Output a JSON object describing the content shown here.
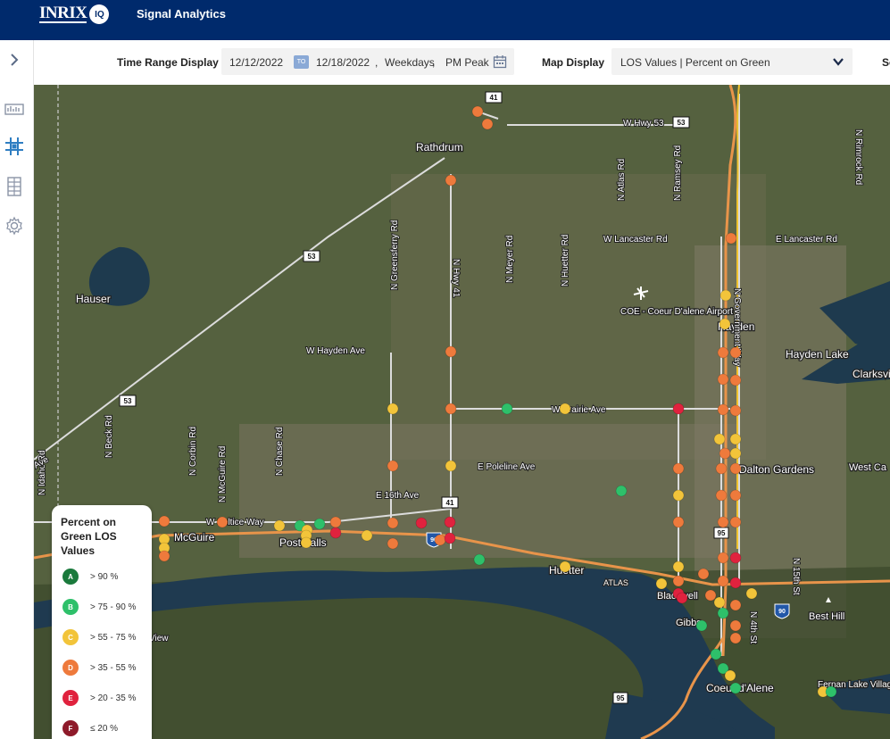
{
  "header": {
    "logo_text": "INRIX",
    "logo_badge": "IQ",
    "app_title": "Signal Analytics"
  },
  "sidebar": {
    "items": [
      {
        "name": "expand-chevron-icon"
      },
      {
        "name": "analytics-icon"
      },
      {
        "name": "intersection-map-icon"
      },
      {
        "name": "corridor-icon"
      },
      {
        "name": "settings-icon"
      }
    ]
  },
  "toolbar": {
    "time_range_label": "Time Range Display",
    "start_date": "12/12/2022",
    "to_label": "TO",
    "end_date": "12/18/2022",
    "day_filter": "Weekdays",
    "period_filter": "PM Peak",
    "map_display_label": "Map Display",
    "map_display_value": "LOS Values | Percent on Green",
    "clipped_text": "Se"
  },
  "legend": {
    "title": "Percent on Green LOS Values",
    "levels": [
      {
        "grade": "A",
        "range": "> 90 %",
        "color": "#1a7a3c"
      },
      {
        "grade": "B",
        "range": "> 75 - 90 %",
        "color": "#2ec06a"
      },
      {
        "grade": "C",
        "range": "> 55 - 75 %",
        "color": "#f2c43a"
      },
      {
        "grade": "D",
        "range": "> 35 - 55 %",
        "color": "#ee7a3c"
      },
      {
        "grade": "E",
        "range": "> 20 - 35 %",
        "color": "#e0223e"
      },
      {
        "grade": "F",
        "range": "≤ 20 %",
        "color": "#8e1a2a"
      }
    ]
  },
  "map": {
    "places": [
      {
        "name": "Rathdrum",
        "kind": "town"
      },
      {
        "name": "Hauser",
        "kind": "town"
      },
      {
        "name": "COE - Coeur D'alene Airport",
        "kind": "airport"
      },
      {
        "name": "Hayden",
        "kind": "town"
      },
      {
        "name": "Hayden Lake",
        "kind": "town"
      },
      {
        "name": "Clarksvi",
        "kind": "town"
      },
      {
        "name": "Dalton Gardens",
        "kind": "town"
      },
      {
        "name": "West Ca",
        "kind": "town"
      },
      {
        "name": "McGuire",
        "kind": "town"
      },
      {
        "name": "Post Falls",
        "kind": "town"
      },
      {
        "name": "Huetter",
        "kind": "town"
      },
      {
        "name": "Blackwell",
        "kind": "town"
      },
      {
        "name": "Gibbs",
        "kind": "town"
      },
      {
        "name": "Best Hill",
        "kind": "town"
      },
      {
        "name": "Coeur d'Alene",
        "kind": "town"
      },
      {
        "name": "Fernan Lake Village",
        "kind": "town"
      }
    ],
    "roads": [
      "W Hwy 53",
      "N Ramsey Rd",
      "N Atlas Rd",
      "W Lancaster Rd",
      "E Lancaster Rd",
      "N Government Way",
      "N Rimrock Rd",
      "N Greensferry Rd",
      "N Hwy 41",
      "N Meyer Rd",
      "N Huetter Rd",
      "W Hayden Ave",
      "W Prairie Ave",
      "E Poleline Ave",
      "E 16th Ave",
      "W Seltice Way",
      "N Idaho Rd",
      "N Beck Rd",
      "N Corbin Rd",
      "N McGuire Rd",
      "N Chase Rd",
      "N 4th St",
      "N 15th St",
      "ATLAS",
      "View",
      "Ave"
    ],
    "shields": [
      "41",
      "53",
      "95",
      "90"
    ]
  }
}
